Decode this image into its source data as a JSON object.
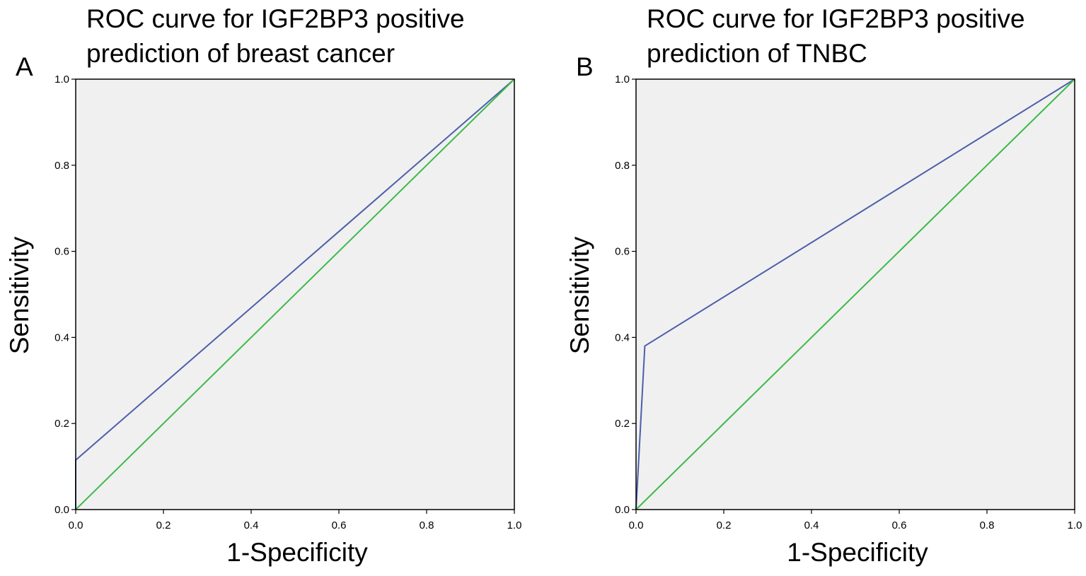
{
  "chart_data": [
    {
      "type": "line",
      "panel_label": "A",
      "title": "ROC curve for IGF2BP3 positive\nprediction of breast cancer",
      "xlabel": "1-Specificity",
      "ylabel": "Sensitivity",
      "xlim": [
        0,
        1
      ],
      "ylim": [
        0,
        1
      ],
      "xticks": [
        "0.0",
        "0.2",
        "0.4",
        "0.6",
        "0.8",
        "1.0"
      ],
      "yticks": [
        "0.0",
        "0.2",
        "0.4",
        "0.6",
        "0.8",
        "1.0"
      ],
      "background_color": "#f0f0f0",
      "series": [
        {
          "name": "ROC curve",
          "color": "#4c5faa",
          "x": [
            0.0,
            0.0,
            1.0
          ],
          "y": [
            0.0,
            0.115,
            1.0
          ]
        },
        {
          "name": "Reference line",
          "color": "#3cba48",
          "x": [
            0.0,
            1.0
          ],
          "y": [
            0.0,
            1.0
          ]
        }
      ]
    },
    {
      "type": "line",
      "panel_label": "B",
      "title": "ROC curve for IGF2BP3 positive\nprediction of TNBC",
      "xlabel": "1-Specificity",
      "ylabel": "Sensitivity",
      "xlim": [
        0,
        1
      ],
      "ylim": [
        0,
        1
      ],
      "xticks": [
        "0.0",
        "0.2",
        "0.4",
        "0.6",
        "0.8",
        "1.0"
      ],
      "yticks": [
        "0.0",
        "0.2",
        "0.4",
        "0.6",
        "0.8",
        "1.0"
      ],
      "background_color": "#f0f0f0",
      "series": [
        {
          "name": "ROC curve",
          "color": "#4c5faa",
          "x": [
            0.0,
            0.02,
            1.0
          ],
          "y": [
            0.0,
            0.38,
            1.0
          ]
        },
        {
          "name": "Reference line",
          "color": "#3cba48",
          "x": [
            0.0,
            1.0
          ],
          "y": [
            0.0,
            1.0
          ]
        }
      ]
    }
  ]
}
